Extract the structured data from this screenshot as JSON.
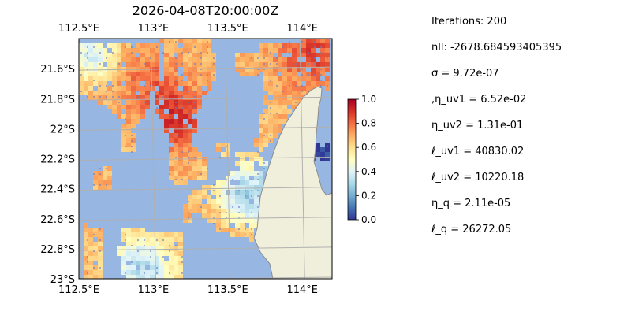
{
  "title": "2026-04-08T20:00:00Z",
  "map": {
    "lon_range": [
      112.5,
      114.2
    ],
    "lat_range": [
      -23.0,
      -21.4
    ],
    "lon_ticks": [
      {
        "value": 112.5,
        "label": "112.5°E"
      },
      {
        "value": 113.0,
        "label": "113°E"
      },
      {
        "value": 113.5,
        "label": "113.5°E"
      },
      {
        "value": 114.0,
        "label": "114°E"
      }
    ],
    "lat_ticks": [
      {
        "value": -21.6,
        "label": "21.6°S"
      },
      {
        "value": -21.8,
        "label": "21.8°S"
      },
      {
        "value": -22.0,
        "label": "22°S"
      },
      {
        "value": -22.2,
        "label": "22.2°S"
      },
      {
        "value": -22.4,
        "label": "22.4°S"
      },
      {
        "value": -22.6,
        "label": "22.6°S"
      },
      {
        "value": -22.8,
        "label": "22.8°S"
      },
      {
        "value": -23.0,
        "label": "23°S"
      }
    ],
    "ocean_color": "#97b6e1",
    "land_color": "#efefdb",
    "grid": true
  },
  "colorbar": {
    "range": [
      0.0,
      1.0
    ],
    "ticks": [
      "0.0",
      "0.2",
      "0.4",
      "0.6",
      "0.8",
      "1.0"
    ],
    "colormap": "RdYlBu_r",
    "stops": [
      "#313695",
      "#4575b4",
      "#74add1",
      "#abd9e9",
      "#e0f3f8",
      "#ffffbf",
      "#fee090",
      "#fdae61",
      "#f46d43",
      "#d73027",
      "#a50026"
    ]
  },
  "params": [
    {
      "text": "Iterations: 200"
    },
    {
      "text": "nll: -2678.684593405395"
    },
    {
      "text": "σ = 9.72e-07"
    },
    {
      "text": ",η_uv1 = 6.52e-02"
    },
    {
      "text": "η_uv2 = 1.31e-01"
    },
    {
      "text": "ℓ_uv1 = 40830.02"
    },
    {
      "text": "ℓ_uv2 = 10220.18"
    },
    {
      "text": "η_q = 2.11e-05"
    },
    {
      "text": "ℓ_q = 26272.05"
    }
  ]
}
